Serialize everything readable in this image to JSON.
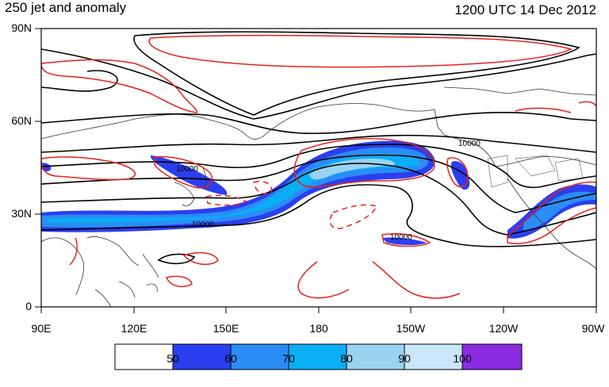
{
  "header": {
    "title_left": "250 jet and anomaly",
    "title_right": "1200 UTC 14 Dec 2012"
  },
  "axes": {
    "lat_labels": [
      "90N",
      "60N",
      "30N",
      "0"
    ],
    "lon_labels": [
      "90E",
      "120E",
      "150E",
      "180",
      "150W",
      "120W",
      "90W"
    ]
  },
  "contour_labels": {
    "height": "10000"
  },
  "colorbar": {
    "labels": [
      "50",
      "60",
      "70",
      "80",
      "90",
      "100"
    ],
    "colors": [
      "#ffffff",
      "#2b3ff0",
      "#2a8df5",
      "#0aaff5",
      "#99d3f0",
      "#c9e7f7",
      "#8a2be2"
    ]
  },
  "colors": {
    "jet_core": "#2b3ff0",
    "anomaly": "#e8201c",
    "height": "#000000",
    "coast": "#333333"
  }
}
